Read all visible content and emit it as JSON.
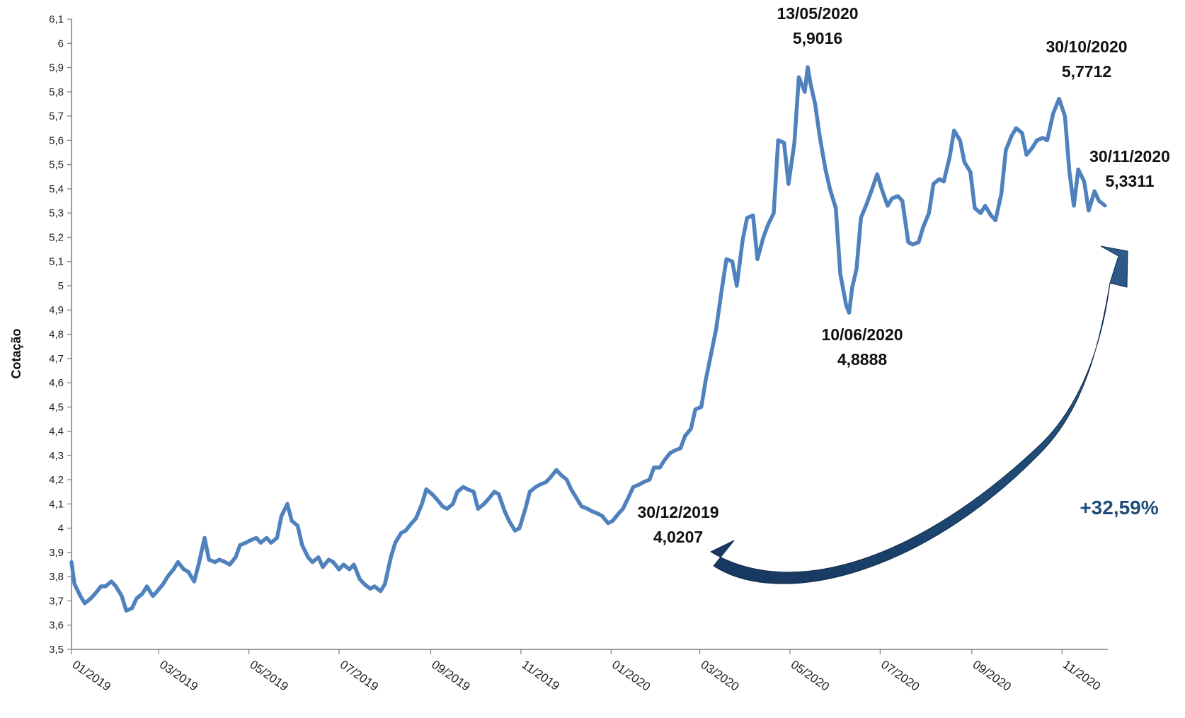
{
  "chart_data": {
    "type": "line",
    "ylabel": "Cotação",
    "xlabel": "",
    "ylim": [
      3.5,
      6.1
    ],
    "yticks": [
      "3,5",
      "3,6",
      "3,7",
      "3,8",
      "3,9",
      "4",
      "4,1",
      "4,2",
      "4,3",
      "4,4",
      "4,5",
      "4,6",
      "4,7",
      "4,8",
      "4,9",
      "5",
      "5,1",
      "5,2",
      "5,3",
      "5,4",
      "5,5",
      "5,6",
      "5,7",
      "5,8",
      "5,9",
      "6",
      "6,1"
    ],
    "xticks": [
      "01/2019",
      "03/2019",
      "05/2019",
      "07/2019",
      "09/2019",
      "11/2019",
      "01/2020",
      "03/2020",
      "05/2020",
      "07/2020",
      "09/2020",
      "11/2020"
    ],
    "xlim": [
      "2019-01-01",
      "2020-12-02"
    ],
    "grid": false,
    "series_color": "#4F81BD",
    "series": [
      {
        "points": [
          [
            "2019-01-01",
            3.86
          ],
          [
            "2019-01-03",
            3.77
          ],
          [
            "2019-01-07",
            3.72
          ],
          [
            "2019-01-10",
            3.69
          ],
          [
            "2019-01-14",
            3.71
          ],
          [
            "2019-01-17",
            3.73
          ],
          [
            "2019-01-21",
            3.76
          ],
          [
            "2019-01-24",
            3.76
          ],
          [
            "2019-01-28",
            3.78
          ],
          [
            "2019-01-31",
            3.76
          ],
          [
            "2019-02-04",
            3.72
          ],
          [
            "2019-02-07",
            3.66
          ],
          [
            "2019-02-11",
            3.67
          ],
          [
            "2019-02-14",
            3.71
          ],
          [
            "2019-02-18",
            3.73
          ],
          [
            "2019-02-21",
            3.76
          ],
          [
            "2019-02-25",
            3.72
          ],
          [
            "2019-02-28",
            3.74
          ],
          [
            "2019-03-04",
            3.77
          ],
          [
            "2019-03-07",
            3.8
          ],
          [
            "2019-03-11",
            3.83
          ],
          [
            "2019-03-14",
            3.86
          ],
          [
            "2019-03-18",
            3.83
          ],
          [
            "2019-03-21",
            3.82
          ],
          [
            "2019-03-25",
            3.78
          ],
          [
            "2019-03-28",
            3.85
          ],
          [
            "2019-04-01",
            3.96
          ],
          [
            "2019-04-04",
            3.87
          ],
          [
            "2019-04-08",
            3.86
          ],
          [
            "2019-04-11",
            3.87
          ],
          [
            "2019-04-15",
            3.86
          ],
          [
            "2019-04-18",
            3.85
          ],
          [
            "2019-04-22",
            3.88
          ],
          [
            "2019-04-25",
            3.93
          ],
          [
            "2019-04-29",
            3.94
          ],
          [
            "2019-05-02",
            3.95
          ],
          [
            "2019-05-06",
            3.96
          ],
          [
            "2019-05-09",
            3.94
          ],
          [
            "2019-05-13",
            3.96
          ],
          [
            "2019-05-16",
            3.94
          ],
          [
            "2019-05-20",
            3.96
          ],
          [
            "2019-05-23",
            4.05
          ],
          [
            "2019-05-27",
            4.1
          ],
          [
            "2019-05-30",
            4.03
          ],
          [
            "2019-06-03",
            4.01
          ],
          [
            "2019-06-06",
            3.93
          ],
          [
            "2019-06-10",
            3.88
          ],
          [
            "2019-06-13",
            3.86
          ],
          [
            "2019-06-17",
            3.88
          ],
          [
            "2019-06-20",
            3.84
          ],
          [
            "2019-06-24",
            3.87
          ],
          [
            "2019-06-27",
            3.86
          ],
          [
            "2019-07-01",
            3.83
          ],
          [
            "2019-07-04",
            3.85
          ],
          [
            "2019-07-08",
            3.83
          ],
          [
            "2019-07-11",
            3.85
          ],
          [
            "2019-07-15",
            3.79
          ],
          [
            "2019-07-18",
            3.77
          ],
          [
            "2019-07-22",
            3.75
          ],
          [
            "2019-07-25",
            3.76
          ],
          [
            "2019-07-29",
            3.74
          ],
          [
            "2019-08-01",
            3.77
          ],
          [
            "2019-08-05",
            3.88
          ],
          [
            "2019-08-08",
            3.94
          ],
          [
            "2019-08-12",
            3.98
          ],
          [
            "2019-08-15",
            3.99
          ],
          [
            "2019-08-19",
            4.02
          ],
          [
            "2019-08-22",
            4.04
          ],
          [
            "2019-08-26",
            4.1
          ],
          [
            "2019-08-29",
            4.16
          ],
          [
            "2019-09-02",
            4.14
          ],
          [
            "2019-09-05",
            4.12
          ],
          [
            "2019-09-09",
            4.09
          ],
          [
            "2019-09-12",
            4.08
          ],
          [
            "2019-09-16",
            4.1
          ],
          [
            "2019-09-19",
            4.15
          ],
          [
            "2019-09-23",
            4.17
          ],
          [
            "2019-09-26",
            4.16
          ],
          [
            "2019-09-30",
            4.15
          ],
          [
            "2019-10-03",
            4.08
          ],
          [
            "2019-10-07",
            4.1
          ],
          [
            "2019-10-10",
            4.12
          ],
          [
            "2019-10-14",
            4.15
          ],
          [
            "2019-10-17",
            4.14
          ],
          [
            "2019-10-21",
            4.07
          ],
          [
            "2019-10-24",
            4.03
          ],
          [
            "2019-10-28",
            3.99
          ],
          [
            "2019-10-31",
            4.0
          ],
          [
            "2019-11-04",
            4.08
          ],
          [
            "2019-11-07",
            4.15
          ],
          [
            "2019-11-11",
            4.17
          ],
          [
            "2019-11-14",
            4.18
          ],
          [
            "2019-11-18",
            4.19
          ],
          [
            "2019-11-21",
            4.21
          ],
          [
            "2019-11-25",
            4.24
          ],
          [
            "2019-11-28",
            4.22
          ],
          [
            "2019-12-02",
            4.2
          ],
          [
            "2019-12-05",
            4.16
          ],
          [
            "2019-12-09",
            4.12
          ],
          [
            "2019-12-12",
            4.09
          ],
          [
            "2019-12-16",
            4.08
          ],
          [
            "2019-12-19",
            4.07
          ],
          [
            "2019-12-23",
            4.06
          ],
          [
            "2019-12-26",
            4.05
          ],
          [
            "2019-12-30",
            4.0207
          ],
          [
            "2020-01-02",
            4.03
          ],
          [
            "2020-01-06",
            4.06
          ],
          [
            "2020-01-09",
            4.08
          ],
          [
            "2020-01-13",
            4.13
          ],
          [
            "2020-01-16",
            4.17
          ],
          [
            "2020-01-20",
            4.18
          ],
          [
            "2020-01-23",
            4.19
          ],
          [
            "2020-01-27",
            4.2
          ],
          [
            "2020-01-30",
            4.25
          ],
          [
            "2020-02-03",
            4.25
          ],
          [
            "2020-02-06",
            4.28
          ],
          [
            "2020-02-10",
            4.31
          ],
          [
            "2020-02-13",
            4.32
          ],
          [
            "2020-02-17",
            4.33
          ],
          [
            "2020-02-20",
            4.38
          ],
          [
            "2020-02-24",
            4.41
          ],
          [
            "2020-02-27",
            4.49
          ],
          [
            "2020-03-02",
            4.5
          ],
          [
            "2020-03-05",
            4.61
          ],
          [
            "2020-03-09",
            4.73
          ],
          [
            "2020-03-12",
            4.82
          ],
          [
            "2020-03-16",
            4.99
          ],
          [
            "2020-03-19",
            5.11
          ],
          [
            "2020-03-23",
            5.1
          ],
          [
            "2020-03-26",
            5.0
          ],
          [
            "2020-03-30",
            5.19
          ],
          [
            "2020-04-02",
            5.28
          ],
          [
            "2020-04-06",
            5.29
          ],
          [
            "2020-04-09",
            5.11
          ],
          [
            "2020-04-13",
            5.2
          ],
          [
            "2020-04-16",
            5.25
          ],
          [
            "2020-04-20",
            5.3
          ],
          [
            "2020-04-23",
            5.6
          ],
          [
            "2020-04-27",
            5.59
          ],
          [
            "2020-04-30",
            5.42
          ],
          [
            "2020-05-04",
            5.59
          ],
          [
            "2020-05-07",
            5.86
          ],
          [
            "2020-05-11",
            5.8
          ],
          [
            "2020-05-13",
            5.9016
          ],
          [
            "2020-05-15",
            5.83
          ],
          [
            "2020-05-18",
            5.75
          ],
          [
            "2020-05-21",
            5.62
          ],
          [
            "2020-05-25",
            5.48
          ],
          [
            "2020-05-28",
            5.4
          ],
          [
            "2020-06-01",
            5.32
          ],
          [
            "2020-06-04",
            5.05
          ],
          [
            "2020-06-08",
            4.92
          ],
          [
            "2020-06-10",
            4.8888
          ],
          [
            "2020-06-12",
            4.99
          ],
          [
            "2020-06-15",
            5.07
          ],
          [
            "2020-06-18",
            5.28
          ],
          [
            "2020-06-22",
            5.34
          ],
          [
            "2020-06-25",
            5.39
          ],
          [
            "2020-06-29",
            5.46
          ],
          [
            "2020-07-02",
            5.4
          ],
          [
            "2020-07-06",
            5.33
          ],
          [
            "2020-07-09",
            5.36
          ],
          [
            "2020-07-13",
            5.37
          ],
          [
            "2020-07-16",
            5.35
          ],
          [
            "2020-07-20",
            5.18
          ],
          [
            "2020-07-23",
            5.17
          ],
          [
            "2020-07-27",
            5.18
          ],
          [
            "2020-07-30",
            5.24
          ],
          [
            "2020-08-03",
            5.3
          ],
          [
            "2020-08-06",
            5.42
          ],
          [
            "2020-08-10",
            5.44
          ],
          [
            "2020-08-13",
            5.43
          ],
          [
            "2020-08-17",
            5.53
          ],
          [
            "2020-08-20",
            5.64
          ],
          [
            "2020-08-24",
            5.6
          ],
          [
            "2020-08-27",
            5.51
          ],
          [
            "2020-08-31",
            5.47
          ],
          [
            "2020-09-03",
            5.32
          ],
          [
            "2020-09-07",
            5.3
          ],
          [
            "2020-09-10",
            5.33
          ],
          [
            "2020-09-14",
            5.29
          ],
          [
            "2020-09-17",
            5.27
          ],
          [
            "2020-09-21",
            5.38
          ],
          [
            "2020-09-24",
            5.56
          ],
          [
            "2020-09-28",
            5.62
          ],
          [
            "2020-10-01",
            5.65
          ],
          [
            "2020-10-05",
            5.63
          ],
          [
            "2020-10-08",
            5.54
          ],
          [
            "2020-10-12",
            5.57
          ],
          [
            "2020-10-15",
            5.6
          ],
          [
            "2020-10-19",
            5.61
          ],
          [
            "2020-10-22",
            5.6
          ],
          [
            "2020-10-26",
            5.71
          ],
          [
            "2020-10-30",
            5.7712
          ],
          [
            "2020-11-03",
            5.7
          ],
          [
            "2020-11-06",
            5.47
          ],
          [
            "2020-11-09",
            5.33
          ],
          [
            "2020-11-12",
            5.48
          ],
          [
            "2020-11-16",
            5.43
          ],
          [
            "2020-11-19",
            5.31
          ],
          [
            "2020-11-23",
            5.39
          ],
          [
            "2020-11-26",
            5.35
          ],
          [
            "2020-11-30",
            5.3311
          ]
        ]
      }
    ],
    "annotations": [
      {
        "date": "13/05/2020",
        "value": "5,9016"
      },
      {
        "date": "30/10/2020",
        "value": "5,7712"
      },
      {
        "date": "30/11/2020",
        "value": "5,3311"
      },
      {
        "date": "10/06/2020",
        "value": "4,8888"
      },
      {
        "date": "30/12/2019",
        "value": "4,0207"
      }
    ],
    "change_label": "+32,59%",
    "change_color": "#1F4E79"
  }
}
